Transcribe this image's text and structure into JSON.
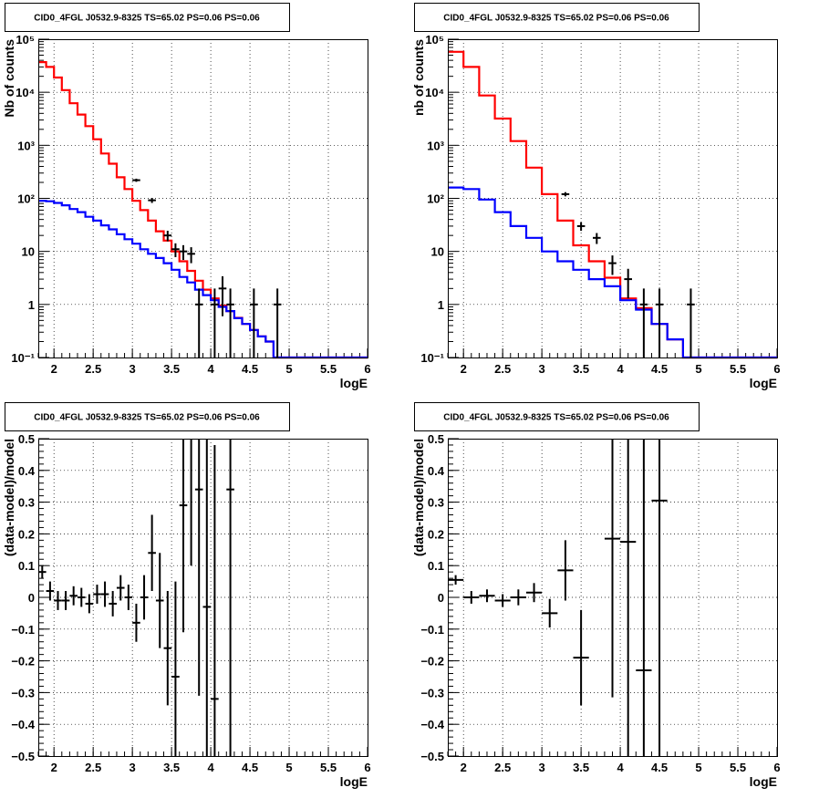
{
  "chart_data": [
    {
      "panel": "top-left",
      "type": "line",
      "title": "CID0_4FGL J0532.9-8325 TS=65.02 PS=0.06 PS=0.06",
      "xlabel": "logE",
      "ylabel": "Nb of counts",
      "xlim": [
        1.8,
        6.0
      ],
      "ylim": [
        0.1,
        100000
      ],
      "yscale": "log",
      "grid": true,
      "x_ticks": [
        2,
        2.5,
        3,
        3.5,
        4,
        4.5,
        5,
        5.5,
        6
      ],
      "x_tick_labels": [
        "2",
        "2.5",
        "3",
        "3.5",
        "4",
        "4.5",
        "5",
        "5.5",
        "6"
      ],
      "y_ticks": [
        0.1,
        1,
        10,
        100,
        1000,
        10000,
        100000
      ],
      "y_tick_labels": [
        "10⁻¹",
        "1",
        "10",
        "10²",
        "10³",
        "10⁴",
        "10⁵"
      ],
      "bin_edges": [
        1.8,
        1.9,
        2.0,
        2.1,
        2.2,
        2.3,
        2.4,
        2.5,
        2.6,
        2.7,
        2.8,
        2.9,
        3.0,
        3.1,
        3.2,
        3.3,
        3.4,
        3.5,
        3.6,
        3.7,
        3.8,
        3.9,
        4.0,
        4.1,
        4.2,
        4.3,
        4.4,
        4.5,
        4.6,
        4.7,
        4.8,
        4.9,
        5.0,
        5.1,
        5.2,
        5.3,
        5.4,
        5.5,
        5.6,
        5.7,
        5.8,
        5.9,
        6.0
      ],
      "series": [
        {
          "color": "#ff0000",
          "style": "step",
          "values": [
            37000,
            30000,
            19000,
            11000,
            6200,
            3800,
            2300,
            1300,
            700,
            450,
            250,
            150,
            90,
            60,
            38,
            24,
            16,
            10,
            6.5,
            4.3,
            2.8,
            1.9,
            1.3,
            0.95,
            0.75,
            0.56,
            0.43,
            0.33,
            0.25,
            0.2,
            0.1,
            0.1,
            0.1,
            0.1,
            0.1,
            0.1,
            0.1,
            0.1,
            0.1,
            0.1,
            0.1,
            0.1
          ]
        },
        {
          "color": "#0000ff",
          "style": "step",
          "values": [
            90,
            88,
            82,
            74,
            63,
            55,
            45,
            38,
            31,
            26,
            21,
            17,
            14,
            11,
            9,
            7.5,
            6,
            4.5,
            3.3,
            2.6,
            1.9,
            1.5,
            1.2,
            0.9,
            0.75,
            0.55,
            0.43,
            0.33,
            0.25,
            0.2,
            0.1,
            0.1,
            0.1,
            0.1,
            0.1,
            0.1,
            0.1,
            0.1,
            0.1,
            0.1,
            0.1,
            0.1
          ]
        },
        {
          "color": "#000000",
          "style": "points",
          "x": [
            3.05,
            3.25,
            3.45,
            3.55,
            3.65,
            3.75,
            3.85,
            4.05,
            4.15,
            4.25,
            4.55,
            4.85
          ],
          "values": [
            220,
            92,
            20,
            11,
            10,
            9,
            1,
            1,
            2,
            1,
            1,
            1
          ],
          "err_lo": [
            15,
            10,
            4.5,
            3.2,
            3.1,
            3,
            0.9,
            0.9,
            1.4,
            0.9,
            0.9,
            0.9
          ],
          "err_hi": [
            15,
            10,
            4.5,
            3.2,
            3.1,
            3,
            1,
            1,
            1.4,
            1,
            1,
            1
          ]
        }
      ]
    },
    {
      "panel": "top-right",
      "type": "line",
      "title": "CID0_4FGL J0532.9-8325 TS=65.02 PS=0.06 PS=0.06",
      "xlabel": "logE",
      "ylabel": "nb of counts",
      "xlim": [
        1.8,
        6.0
      ],
      "ylim": [
        0.1,
        100000
      ],
      "yscale": "log",
      "grid": true,
      "x_ticks": [
        2,
        2.5,
        3,
        3.5,
        4,
        4.5,
        5,
        5.5,
        6
      ],
      "x_tick_labels": [
        "2",
        "2.5",
        "3",
        "3.5",
        "4",
        "4.5",
        "5",
        "5.5",
        "6"
      ],
      "y_ticks": [
        0.1,
        1,
        10,
        100,
        1000,
        10000,
        100000
      ],
      "y_tick_labels": [
        "10⁻¹",
        "1",
        "10",
        "10²",
        "10³",
        "10⁴",
        "10⁵"
      ],
      "bin_edges": [
        1.8,
        2.0,
        2.2,
        2.4,
        2.6,
        2.8,
        3.0,
        3.2,
        3.4,
        3.6,
        3.8,
        4.0,
        4.2,
        4.4,
        4.6,
        4.8,
        5.0,
        5.2,
        5.4,
        5.6,
        5.8,
        6.0
      ],
      "series": [
        {
          "color": "#ff0000",
          "style": "step",
          "values": [
            58000,
            30000,
            8700,
            3200,
            1200,
            380,
            120,
            38,
            13,
            6.5,
            3.2,
            1.3,
            0.85,
            0.43,
            0.22,
            0.1,
            0.1,
            0.1,
            0.1,
            0.1,
            0.1
          ]
        },
        {
          "color": "#0000ff",
          "style": "step",
          "values": [
            160,
            150,
            95,
            55,
            30,
            18,
            10,
            6.5,
            4.5,
            3,
            2.2,
            1.2,
            0.8,
            0.43,
            0.22,
            0.1,
            0.1,
            0.1,
            0.1,
            0.1,
            0.1
          ]
        },
        {
          "color": "#000000",
          "style": "points",
          "x": [
            3.3,
            3.5,
            3.7,
            3.9,
            4.1,
            4.3,
            4.5,
            4.9
          ],
          "values": [
            120,
            30,
            18,
            6,
            3,
            1,
            1,
            1
          ],
          "err_lo": [
            11,
            5.5,
            4.2,
            2.4,
            1.7,
            0.9,
            0.9,
            0.9
          ],
          "err_hi": [
            11,
            5.5,
            4.2,
            2.4,
            1.7,
            1,
            1,
            1
          ]
        }
      ]
    },
    {
      "panel": "bottom-left",
      "type": "scatter",
      "title": "CID0_4FGL J0532.9-8325 TS=65.02 PS=0.06 PS=0.06",
      "xlabel": "logE",
      "ylabel": "(data-model)/model",
      "xlim": [
        1.8,
        6.0
      ],
      "ylim": [
        -0.5,
        0.5
      ],
      "grid": true,
      "x_ticks": [
        2,
        2.5,
        3,
        3.5,
        4,
        4.5,
        5,
        5.5,
        6
      ],
      "x_tick_labels": [
        "2",
        "2.5",
        "3",
        "3.5",
        "4",
        "4.5",
        "5",
        "5.5",
        "6"
      ],
      "y_ticks": [
        -0.5,
        -0.4,
        -0.3,
        -0.2,
        -0.1,
        0,
        0.1,
        0.2,
        0.3,
        0.4,
        0.5
      ],
      "y_tick_labels": [
        "−0.5",
        "−0.4",
        "−0.3",
        "−0.2",
        "−0.1",
        "0",
        "0.1",
        "0.2",
        "0.3",
        "0.4",
        "0.5"
      ],
      "series": [
        {
          "color": "#000000",
          "style": "points",
          "bin_width": 0.1,
          "x": [
            1.85,
            1.95,
            2.05,
            2.15,
            2.25,
            2.35,
            2.45,
            2.55,
            2.65,
            2.75,
            2.85,
            2.95,
            3.05,
            3.15,
            3.25,
            3.35,
            3.45,
            3.55,
            3.65,
            3.75,
            3.85,
            3.95,
            4.05,
            4.25
          ],
          "values": [
            0.08,
            0.02,
            -0.01,
            -0.01,
            0.005,
            0.0,
            -0.02,
            0.01,
            0.01,
            -0.02,
            0.03,
            0.0,
            -0.08,
            0.0,
            0.14,
            -0.01,
            -0.16,
            -0.25,
            0.29,
            0.6,
            0.34,
            -0.03,
            -0.32,
            0.34
          ],
          "errors": [
            0.02,
            0.03,
            0.03,
            0.03,
            0.03,
            0.03,
            0.03,
            0.03,
            0.04,
            0.04,
            0.04,
            0.04,
            0.06,
            0.07,
            0.12,
            0.15,
            0.18,
            0.3,
            0.4,
            0.5,
            0.65,
            0.7,
            0.8,
            0.9
          ]
        }
      ]
    },
    {
      "panel": "bottom-right",
      "type": "scatter",
      "title": "CID0_4FGL J0532.9-8325 TS=65.02 PS=0.06 PS=0.06",
      "xlabel": "logE",
      "ylabel": "(data-model)/model",
      "xlim": [
        1.8,
        6.0
      ],
      "ylim": [
        -0.5,
        0.5
      ],
      "grid": true,
      "x_ticks": [
        2,
        2.5,
        3,
        3.5,
        4,
        4.5,
        5,
        5.5,
        6
      ],
      "x_tick_labels": [
        "2",
        "2.5",
        "3",
        "3.5",
        "4",
        "4.5",
        "5",
        "5.5",
        "6"
      ],
      "y_ticks": [
        -0.5,
        -0.4,
        -0.3,
        -0.2,
        -0.1,
        0,
        0.1,
        0.2,
        0.3,
        0.4,
        0.5
      ],
      "y_tick_labels": [
        "−0.5",
        "−0.4",
        "−0.3",
        "−0.2",
        "−0.1",
        "0",
        "0.1",
        "0.2",
        "0.3",
        "0.4",
        "0.5"
      ],
      "series": [
        {
          "color": "#000000",
          "style": "points",
          "bin_width": 0.2,
          "x": [
            1.9,
            2.1,
            2.3,
            2.5,
            2.7,
            2.9,
            3.1,
            3.3,
            3.5,
            3.9,
            4.1,
            4.3,
            4.5
          ],
          "values": [
            0.055,
            0.0,
            0.005,
            -0.01,
            0.0,
            0.015,
            -0.05,
            0.085,
            -0.19,
            0.185,
            0.175,
            -0.23,
            0.305
          ],
          "errors": [
            0.015,
            0.02,
            0.02,
            0.02,
            0.025,
            0.03,
            0.045,
            0.095,
            0.15,
            0.5,
            0.7,
            0.8,
            0.9
          ]
        }
      ]
    }
  ]
}
